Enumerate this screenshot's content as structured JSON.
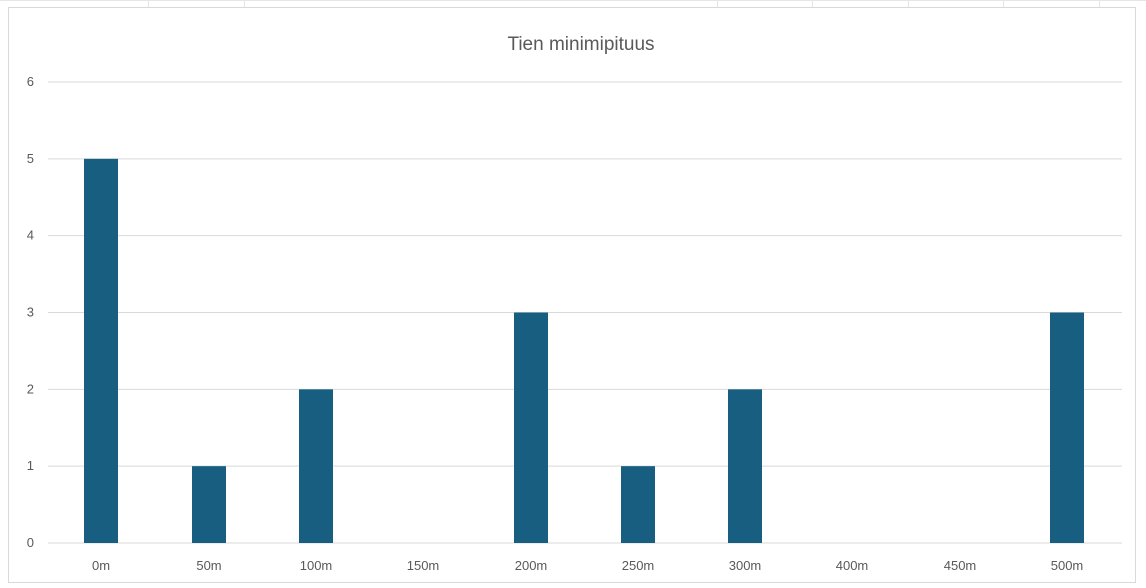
{
  "chart_data": {
    "type": "bar",
    "title": "Tien minimipituus",
    "xlabel": "",
    "ylabel": "",
    "categories": [
      "0m",
      "50m",
      "100m",
      "150m",
      "200m",
      "250m",
      "300m",
      "400m",
      "450m",
      "500m"
    ],
    "values": [
      5,
      1,
      2,
      0,
      3,
      1,
      2,
      0,
      0,
      3
    ],
    "ylim": [
      0,
      6
    ],
    "yticks": [
      0,
      1,
      2,
      3,
      4,
      5,
      6
    ],
    "grid": true,
    "legend": "none",
    "colors": {
      "bar": "#175e80",
      "grid": "#d9d9d9",
      "text": "#595959"
    }
  }
}
